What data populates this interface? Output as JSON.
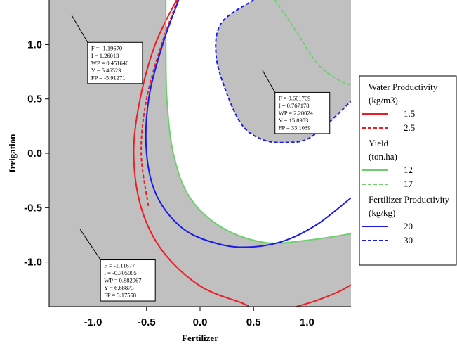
{
  "chart_data": {
    "type": "contour",
    "xlabel": "Fertilizer",
    "ylabel": "Irrigation",
    "xlim": [
      -1.41,
      1.41
    ],
    "ylim": [
      -1.41,
      1.41
    ],
    "xticks": [
      "-1.0",
      "-0.5",
      "0.0",
      "0.5",
      "1.0"
    ],
    "yticks": [
      "1.0",
      "0.5",
      "0.0",
      "-0.5",
      "-1.0"
    ],
    "xtick_values": [
      -1.0,
      -0.5,
      0.0,
      0.5,
      1.0
    ],
    "ytick_values": [
      1.0,
      0.5,
      0.0,
      -0.5,
      -1.0
    ],
    "background_color": "#c0c0c0",
    "feasible_region_color": "#ffffff",
    "legend_position": "right",
    "legend_groups": [
      {
        "title": [
          "Water Productivity",
          "(kg/m3)"
        ],
        "entries": [
          {
            "label": "1.5",
            "color": "#ee1c24",
            "dash": "solid"
          },
          {
            "label": "2.5",
            "color": "#ee1c24",
            "dash": "dashed"
          }
        ]
      },
      {
        "title": [
          "Yield",
          "(ton.ha)"
        ],
        "entries": [
          {
            "label": "12",
            "color": "#6fcf6f",
            "dash": "solid"
          },
          {
            "label": "17",
            "color": "#6fcf6f",
            "dash": "dashed"
          }
        ]
      },
      {
        "title": [
          "Fertilizer Productivity",
          "(kg/kg)"
        ],
        "entries": [
          {
            "label": "20",
            "color": "#1a1aee",
            "dash": "solid"
          },
          {
            "label": "30",
            "color": "#1a1aee",
            "dash": "dashed"
          }
        ]
      }
    ],
    "contours": [
      {
        "variable": "WP",
        "level": "1.5",
        "color": "#ee1c24",
        "dash": "solid",
        "points": [
          [
            -0.22,
            1.41
          ],
          [
            -0.42,
            1.0
          ],
          [
            -0.56,
            0.5
          ],
          [
            -0.62,
            0.0
          ],
          [
            -0.55,
            -0.5
          ],
          [
            -0.35,
            -0.9
          ],
          [
            0.0,
            -1.22
          ],
          [
            0.4,
            -1.38
          ],
          [
            0.45,
            -1.41
          ]
        ]
      },
      {
        "variable": "WP",
        "level": "1.5 (lower right)",
        "color": "#ee1c24",
        "dash": "solid",
        "points": [
          [
            0.9,
            -1.41
          ],
          [
            1.1,
            -1.35
          ],
          [
            1.3,
            -1.27
          ],
          [
            1.41,
            -1.21
          ]
        ]
      },
      {
        "variable": "WP",
        "level": "2.5",
        "color": "#ee1c24",
        "dash": "dashed",
        "points": [
          [
            -0.21,
            1.41
          ],
          [
            -0.36,
            1.0
          ],
          [
            -0.5,
            0.5
          ],
          [
            -0.55,
            0.0
          ],
          [
            -0.48,
            -0.5
          ]
        ]
      },
      {
        "variable": "Yield",
        "level": "12",
        "color": "#6fcf6f",
        "dash": "solid",
        "points": [
          [
            -0.32,
            1.41
          ],
          [
            -0.32,
            1.0
          ],
          [
            -0.31,
            0.5
          ],
          [
            -0.25,
            0.0
          ],
          [
            -0.1,
            -0.4
          ],
          [
            0.2,
            -0.68
          ],
          [
            0.6,
            -0.82
          ],
          [
            1.0,
            -0.8
          ],
          [
            1.41,
            -0.74
          ]
        ]
      },
      {
        "variable": "Yield",
        "level": "17",
        "color": "#6fcf6f",
        "dash": "dashed",
        "points": [
          [
            0.7,
            1.41
          ],
          [
            0.9,
            1.12
          ],
          [
            1.1,
            0.82
          ],
          [
            1.3,
            0.67
          ],
          [
            1.41,
            0.63
          ]
        ]
      },
      {
        "variable": "FP",
        "level": "20",
        "color": "#1a1aee",
        "dash": "solid",
        "points": [
          [
            -0.2,
            1.41
          ],
          [
            -0.35,
            1.0
          ],
          [
            -0.48,
            0.5
          ],
          [
            -0.5,
            0.0
          ],
          [
            -0.4,
            -0.4
          ],
          [
            -0.15,
            -0.7
          ],
          [
            0.2,
            -0.84
          ],
          [
            0.5,
            -0.86
          ],
          [
            0.8,
            -0.8
          ],
          [
            1.1,
            -0.65
          ],
          [
            1.41,
            -0.41
          ]
        ]
      },
      {
        "variable": "FP",
        "level": "30",
        "color": "#1a1aee",
        "dash": "dashed",
        "points": [
          [
            0.5,
            1.41
          ],
          [
            0.2,
            1.2
          ],
          [
            0.15,
            0.9
          ],
          [
            0.25,
            0.55
          ],
          [
            0.4,
            0.25
          ],
          [
            0.6,
            0.12
          ],
          [
            0.82,
            0.1
          ],
          [
            1.0,
            0.13
          ],
          [
            1.2,
            0.28
          ],
          [
            1.41,
            0.48
          ]
        ]
      }
    ],
    "annotations": [
      {
        "anchor": [
          -1.2,
          1.27
        ],
        "label_pos": [
          -1.05,
          1.02
        ],
        "lines": [
          "F = -1.19670",
          "I = 1.26013",
          "WP = 0.451646",
          "Y = 5.46523",
          "FP = -5.91271"
        ]
      },
      {
        "anchor": [
          0.58,
          0.77
        ],
        "label_pos": [
          0.7,
          0.56
        ],
        "lines": [
          "F = 0.601769",
          "I = 0.767178",
          "WP = 2.20024",
          "Y = 15.8953",
          "FP = 33.1039"
        ]
      },
      {
        "anchor": [
          -1.12,
          -0.7
        ],
        "label_pos": [
          -0.93,
          -0.98
        ],
        "lines": [
          "F = -1.11677",
          "I = -0.705005",
          "WP = 0.882967",
          "Y = 6.68873",
          "FP = 3.17558"
        ]
      }
    ]
  }
}
